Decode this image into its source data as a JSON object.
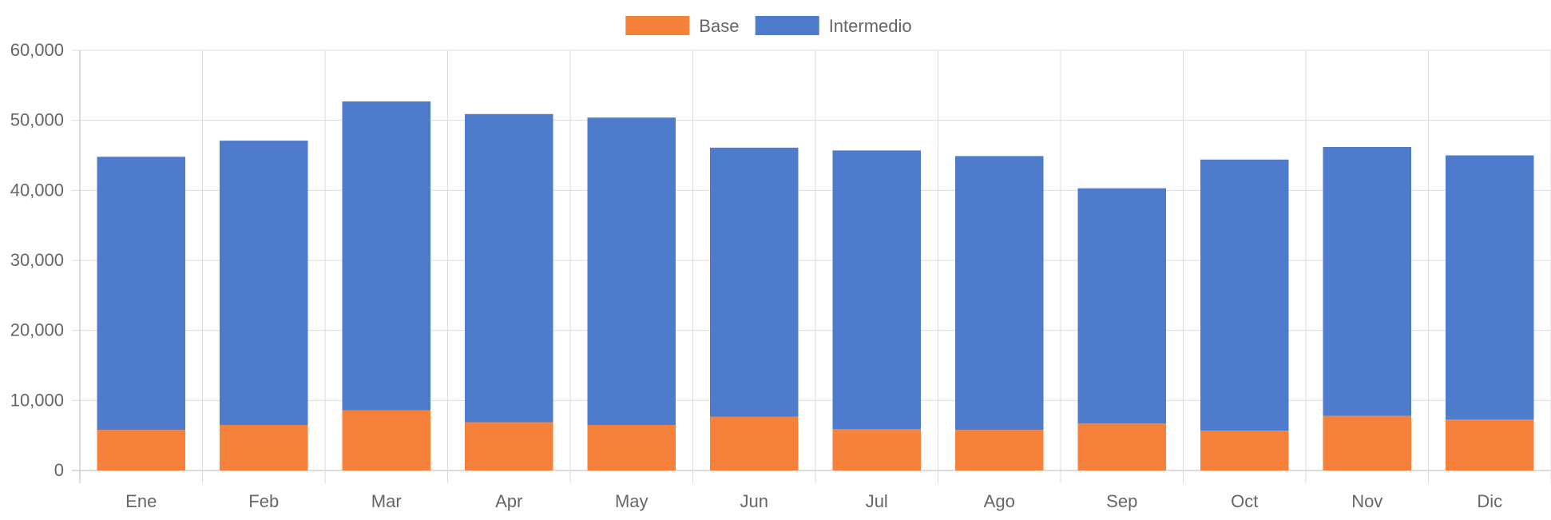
{
  "chart_data": {
    "type": "bar",
    "stacked": true,
    "title": "",
    "xlabel": "",
    "ylabel": "",
    "categories": [
      "Ene",
      "Feb",
      "Mar",
      "Apr",
      "May",
      "Jun",
      "Jul",
      "Ago",
      "Sep",
      "Oct",
      "Nov",
      "Dic"
    ],
    "series": [
      {
        "name": "Base",
        "color": "#f5813a",
        "values": [
          5800,
          6500,
          8600,
          6900,
          6500,
          7700,
          5900,
          5800,
          6700,
          5700,
          7800,
          7300
        ]
      },
      {
        "name": "Intermedio",
        "color": "#4f7bcc",
        "values": [
          39000,
          40600,
          44100,
          44000,
          43900,
          38400,
          39800,
          39100,
          33600,
          38700,
          38400,
          37700
        ]
      }
    ],
    "ylim": [
      0,
      60000
    ],
    "yticks": [
      "0",
      "10,000",
      "20,000",
      "30,000",
      "40,000",
      "50,000",
      "60,000"
    ],
    "grid": true,
    "legend": "top-center"
  }
}
